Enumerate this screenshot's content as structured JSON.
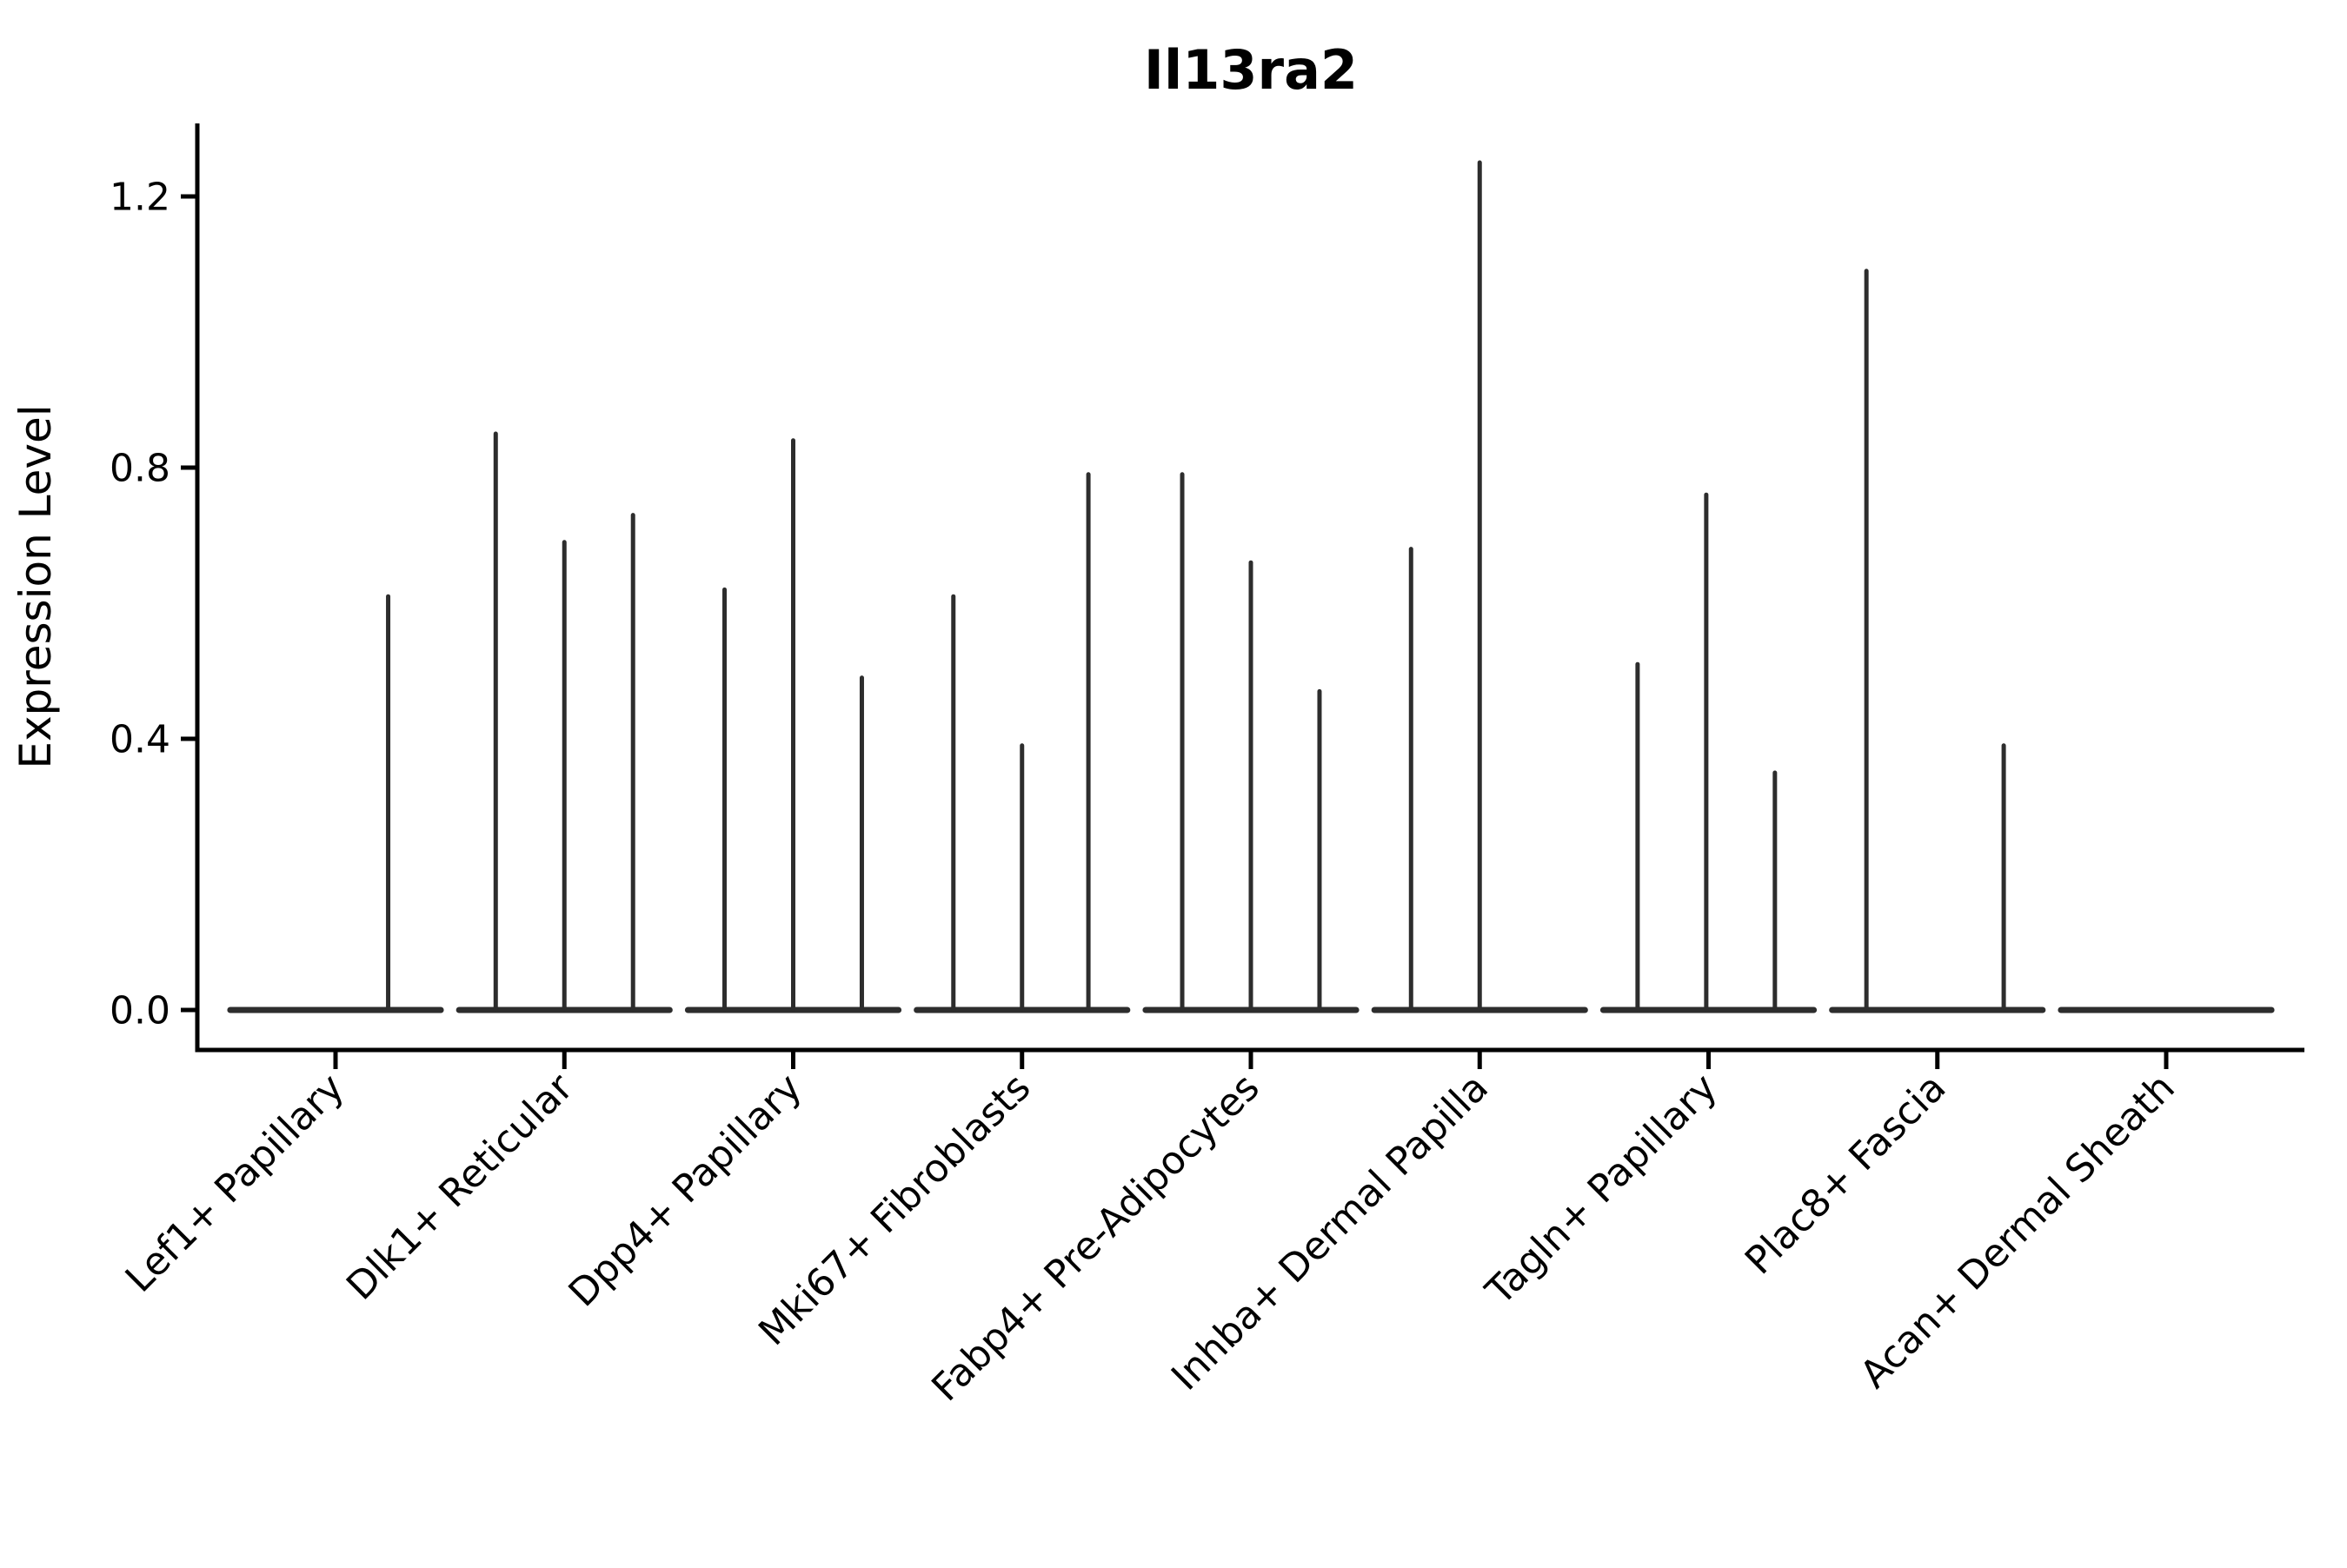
{
  "page": {
    "background": "#ffffff"
  },
  "chart_data": {
    "type": "violin",
    "title": "Il13ra2",
    "ylabel": "Expression Level",
    "xlabel": "",
    "yticks": [
      "0.0",
      "0.4",
      "0.8",
      "1.2"
    ],
    "ytick_values": [
      0.0,
      0.4,
      0.8,
      1.2
    ],
    "ylim": [
      -0.06,
      1.3
    ],
    "grid": false,
    "legend": "none",
    "ink_color": "#2d2d2d",
    "axis_color": "#000000",
    "x_label_rotation_deg": 45,
    "violin_base_halfwidth_frac": 0.46,
    "categories": [
      "Lef1+ Papillary",
      "Dlk1+ Reticular",
      "Dpp4+ Papillary",
      "Mki67+ Fibroblasts",
      "Fabp4+ Pre-Adipocytes",
      "Inhba+ Dermal Papilla",
      "Tagln+ Papillary",
      "Plac8+ Fascia",
      "Acan+ Dermal Sheath"
    ],
    "groups": [
      {
        "category": "Lef1+ Papillary",
        "spikes": [
          {
            "offset_frac": 0.23,
            "value": 0.61
          }
        ]
      },
      {
        "category": "Dlk1+ Reticular",
        "spikes": [
          {
            "offset_frac": -0.3,
            "value": 0.85
          },
          {
            "offset_frac": 0.0,
            "value": 0.69
          },
          {
            "offset_frac": 0.3,
            "value": 0.73
          }
        ]
      },
      {
        "category": "Dpp4+ Papillary",
        "spikes": [
          {
            "offset_frac": -0.3,
            "value": 0.62
          },
          {
            "offset_frac": 0.0,
            "value": 0.84
          },
          {
            "offset_frac": 0.3,
            "value": 0.49
          }
        ]
      },
      {
        "category": "Mki67+ Fibroblasts",
        "spikes": [
          {
            "offset_frac": -0.3,
            "value": 0.61
          },
          {
            "offset_frac": 0.0,
            "value": 0.39
          },
          {
            "offset_frac": 0.29,
            "value": 0.79
          }
        ]
      },
      {
        "category": "Fabp4+ Pre-Adipocytes",
        "spikes": [
          {
            "offset_frac": -0.3,
            "value": 0.79
          },
          {
            "offset_frac": 0.0,
            "value": 0.66
          },
          {
            "offset_frac": 0.3,
            "value": 0.47
          }
        ]
      },
      {
        "category": "Inhba+ Dermal Papilla",
        "spikes": [
          {
            "offset_frac": -0.3,
            "value": 0.68
          },
          {
            "offset_frac": 0.0,
            "value": 1.25
          }
        ]
      },
      {
        "category": "Tagln+ Papillary",
        "spikes": [
          {
            "offset_frac": -0.31,
            "value": 0.51
          },
          {
            "offset_frac": -0.01,
            "value": 0.76
          },
          {
            "offset_frac": 0.29,
            "value": 0.35
          }
        ]
      },
      {
        "category": "Plac8+ Fascia",
        "spikes": [
          {
            "offset_frac": -0.31,
            "value": 1.09
          },
          {
            "offset_frac": 0.29,
            "value": 0.39
          }
        ]
      },
      {
        "category": "Acan+ Dermal Sheath",
        "spikes": []
      }
    ]
  }
}
